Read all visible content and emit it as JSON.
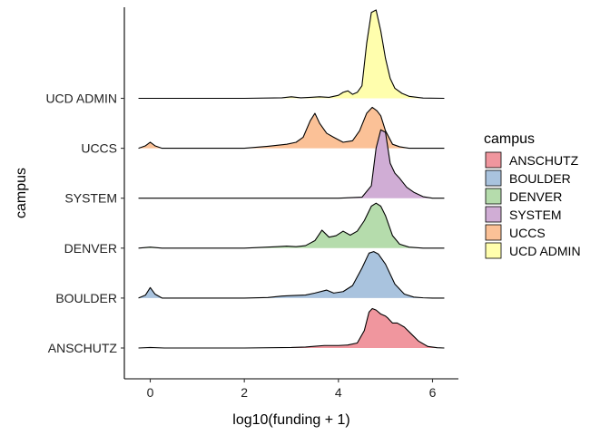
{
  "chart_data": {
    "type": "ridgeline",
    "title": "",
    "xlabel": "log10(funding + 1)",
    "ylabel": "campus",
    "xlim": [
      -0.55,
      6.55
    ],
    "x_ticks": [
      0,
      2,
      4,
      6
    ],
    "x_tick_labels": [
      "0",
      "2",
      "4",
      "6"
    ],
    "grid": false,
    "legend": {
      "title": "campus",
      "placement": "right",
      "entries": [
        "ANSCHUTZ",
        "BOULDER",
        "DENVER",
        "SYSTEM",
        "UCCS",
        "UCD ADMIN"
      ]
    },
    "categories": [
      "ANSCHUTZ",
      "BOULDER",
      "DENVER",
      "SYSTEM",
      "UCCS",
      "UCD ADMIN"
    ],
    "ridge_scale_rows": 1.0,
    "series": [
      {
        "name": "ANSCHUTZ",
        "color": "#F0969E",
        "x": [
          -0.25,
          0.0,
          0.3,
          1.0,
          2.0,
          3.0,
          3.3,
          3.7,
          4.0,
          4.2,
          4.4,
          4.55,
          4.65,
          4.72,
          4.8,
          4.9,
          5.0,
          5.05,
          5.15,
          5.25,
          5.4,
          5.55,
          5.7,
          5.9,
          6.1,
          6.25
        ],
        "density": [
          0.0,
          0.01,
          0.0,
          0.0,
          0.0,
          0.01,
          0.02,
          0.05,
          0.05,
          0.06,
          0.1,
          0.35,
          0.72,
          0.79,
          0.76,
          0.68,
          0.64,
          0.6,
          0.5,
          0.5,
          0.42,
          0.28,
          0.14,
          0.03,
          0.005,
          0.0
        ]
      },
      {
        "name": "BOULDER",
        "color": "#A9C3DE",
        "x": [
          -0.25,
          -0.1,
          0.0,
          0.1,
          0.25,
          0.5,
          1.0,
          2.0,
          2.5,
          2.8,
          3.0,
          3.3,
          3.5,
          3.75,
          3.9,
          4.1,
          4.3,
          4.5,
          4.65,
          4.75,
          4.85,
          5.0,
          5.2,
          5.4,
          5.6,
          5.8,
          6.0,
          6.25
        ],
        "density": [
          0.0,
          0.06,
          0.21,
          0.08,
          0.0,
          0.0,
          0.0,
          0.0,
          0.01,
          0.04,
          0.05,
          0.06,
          0.1,
          0.16,
          0.1,
          0.13,
          0.25,
          0.6,
          0.9,
          0.93,
          0.88,
          0.68,
          0.28,
          0.08,
          0.02,
          0.005,
          0.0,
          0.0
        ]
      },
      {
        "name": "DENVER",
        "color": "#B5DCAC",
        "x": [
          -0.25,
          0.0,
          0.25,
          1.0,
          2.0,
          2.7,
          2.9,
          3.1,
          3.3,
          3.5,
          3.65,
          3.8,
          3.95,
          4.1,
          4.25,
          4.4,
          4.55,
          4.7,
          4.8,
          4.9,
          5.0,
          5.15,
          5.3,
          5.5,
          5.8,
          6.25
        ],
        "density": [
          0.0,
          0.02,
          0.0,
          0.0,
          0.0,
          0.03,
          0.04,
          0.03,
          0.05,
          0.15,
          0.36,
          0.22,
          0.25,
          0.34,
          0.26,
          0.34,
          0.55,
          0.84,
          0.9,
          0.84,
          0.65,
          0.25,
          0.08,
          0.02,
          0.0,
          0.0
        ]
      },
      {
        "name": "SYSTEM",
        "color": "#D0ADD5",
        "x": [
          -0.25,
          1.0,
          3.0,
          4.0,
          4.5,
          4.7,
          4.8,
          4.9,
          5.0,
          5.1,
          5.2,
          5.3,
          5.45,
          5.6,
          5.8,
          6.0,
          6.25
        ],
        "density": [
          0.0,
          0.0,
          0.0,
          0.0,
          0.02,
          0.25,
          1.0,
          1.37,
          1.32,
          0.7,
          0.5,
          0.4,
          0.22,
          0.12,
          0.03,
          0.0,
          0.0
        ]
      },
      {
        "name": "UCCS",
        "color": "#FBC197",
        "x": [
          -0.25,
          -0.1,
          0.0,
          0.1,
          0.25,
          0.5,
          1.0,
          2.0,
          2.5,
          2.7,
          2.9,
          3.1,
          3.25,
          3.4,
          3.5,
          3.6,
          3.75,
          3.9,
          4.1,
          4.3,
          4.45,
          4.6,
          4.72,
          4.82,
          4.9,
          5.0,
          5.15,
          5.3,
          5.5,
          5.7,
          6.25
        ],
        "density": [
          0.0,
          0.05,
          0.12,
          0.05,
          0.0,
          0.0,
          0.0,
          0.0,
          0.04,
          0.06,
          0.08,
          0.12,
          0.22,
          0.55,
          0.7,
          0.5,
          0.3,
          0.22,
          0.12,
          0.15,
          0.35,
          0.7,
          0.82,
          0.75,
          0.65,
          0.35,
          0.08,
          0.03,
          0.0,
          0.0,
          0.0
        ]
      },
      {
        "name": "UCD ADMIN",
        "color": "#FFFEAD",
        "x": [
          -0.25,
          1.0,
          2.0,
          2.8,
          3.0,
          3.2,
          3.4,
          3.6,
          3.8,
          4.0,
          4.1,
          4.2,
          4.3,
          4.4,
          4.5,
          4.6,
          4.7,
          4.8,
          4.9,
          5.0,
          5.1,
          5.2,
          5.35,
          5.5,
          5.8,
          6.25
        ],
        "density": [
          0.0,
          0.0,
          0.0,
          0.01,
          0.03,
          0.01,
          0.02,
          0.03,
          0.02,
          0.06,
          0.12,
          0.15,
          0.08,
          0.12,
          0.25,
          1.1,
          1.72,
          1.77,
          1.35,
          0.8,
          0.4,
          0.2,
          0.1,
          0.04,
          0.005,
          0.0
        ]
      }
    ]
  }
}
